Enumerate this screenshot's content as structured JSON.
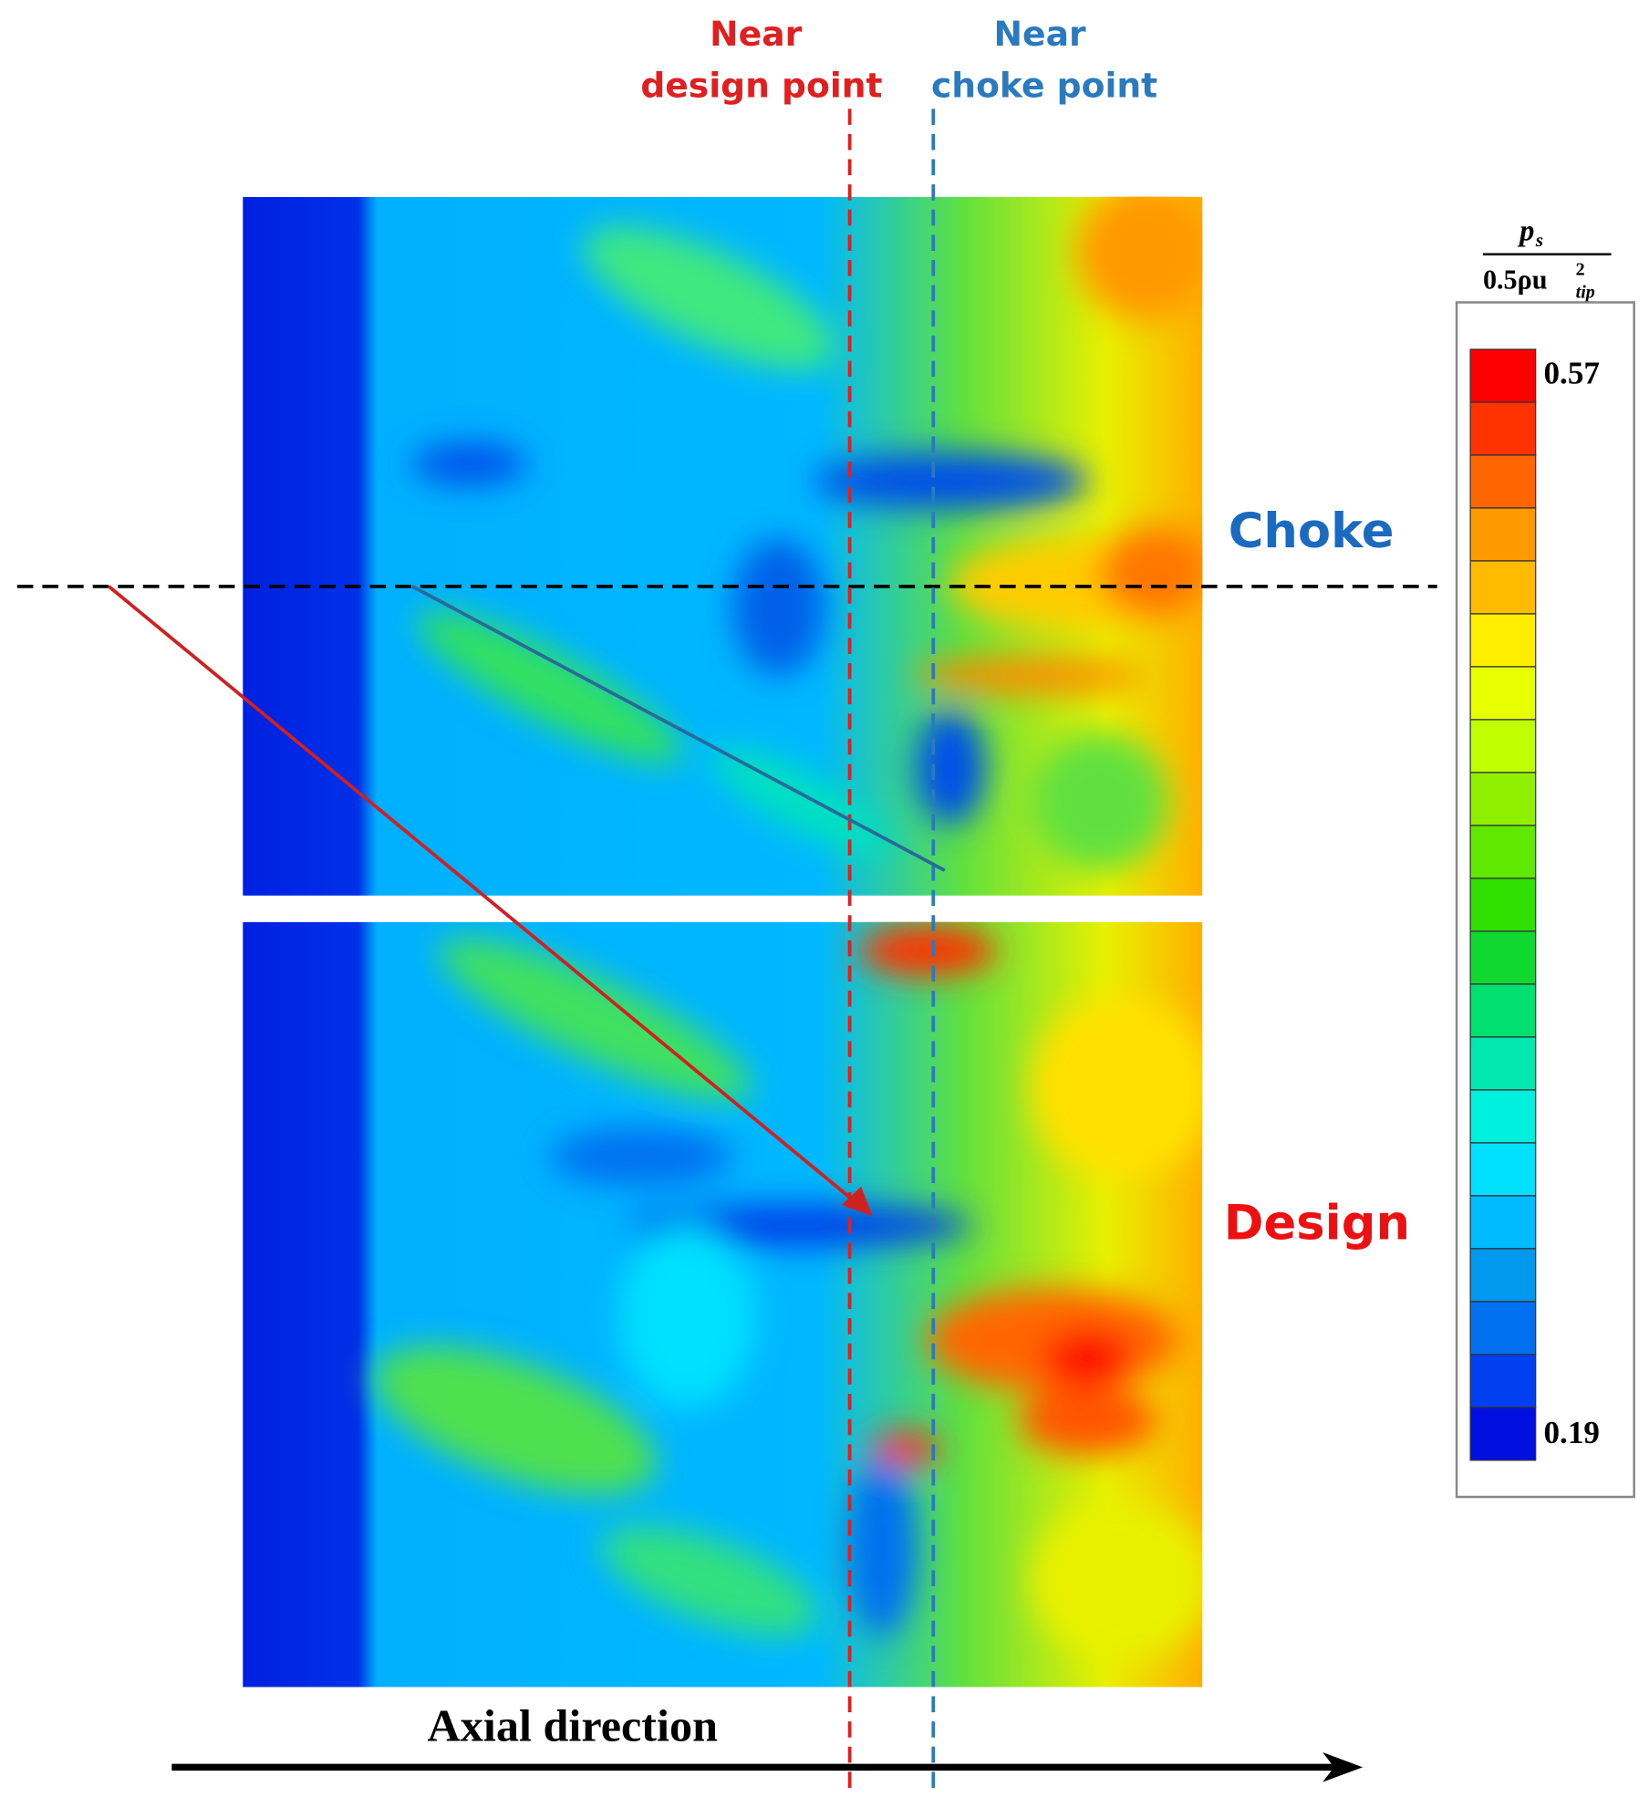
{
  "figure": {
    "annotations": {
      "near_design": [
        "Near",
        "design point"
      ],
      "near_choke": [
        "Near",
        "choke point"
      ],
      "choke": "Choke",
      "design": "Design",
      "axis": "Axial direction"
    },
    "colorbar": {
      "title": {
        "numerator": "p",
        "numerator_sub": "s",
        "denominator": "0.5ρu",
        "denominator_sup": "2",
        "denominator_sub": "tip"
      },
      "max": 0.57,
      "min": 0.19,
      "colors": [
        "#ff0000",
        "#ff3300",
        "#ff6600",
        "#ff9900",
        "#ffbb00",
        "#ffee00",
        "#e8ff00",
        "#c0ff00",
        "#90f000",
        "#60e800",
        "#30e000",
        "#10d830",
        "#00e070",
        "#00e8b0",
        "#00f0e0",
        "#00e0ff",
        "#00bbff",
        "#0099f0",
        "#0070f0",
        "#0040f0",
        "#0010e0"
      ]
    }
  }
}
